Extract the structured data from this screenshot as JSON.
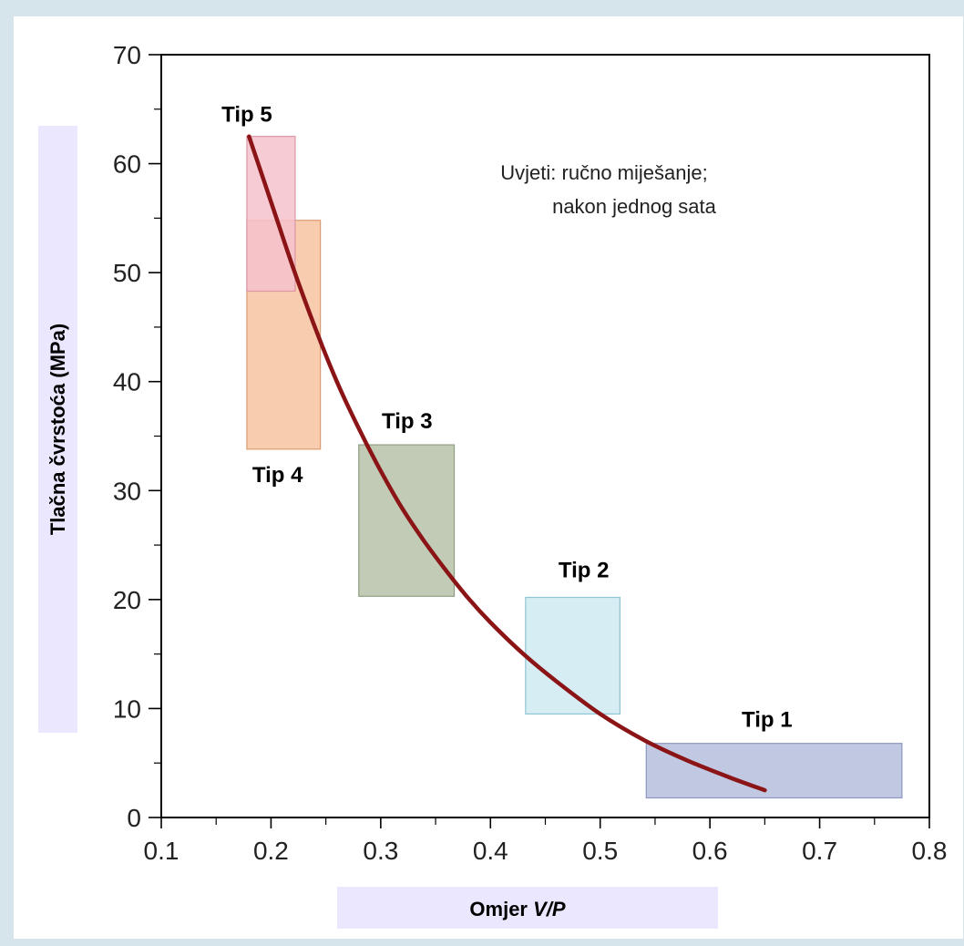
{
  "chart_data": {
    "type": "line",
    "title": "",
    "xlabel": "Omjer V/P",
    "xlabel_parts": [
      "Omjer ",
      "V/P"
    ],
    "ylabel": "Tlačna čvrstoća (MPa)",
    "xlim": [
      0.1,
      0.8
    ],
    "ylim": [
      0,
      70
    ],
    "x_ticks": [
      "0.1",
      "0.2",
      "0.3",
      "0.4",
      "0.5",
      "0.6",
      "0.7",
      "0.8"
    ],
    "y_ticks": [
      "0",
      "10",
      "20",
      "30",
      "40",
      "50",
      "60",
      "70"
    ],
    "grid": false,
    "annotation": [
      "Uvjeti: ručno miješanje;",
      "nakon jednog sata"
    ],
    "curve": {
      "color": "#8b1416",
      "x": [
        0.18,
        0.2,
        0.22,
        0.24,
        0.26,
        0.28,
        0.3,
        0.32,
        0.34,
        0.36,
        0.38,
        0.4,
        0.43,
        0.46,
        0.5,
        0.54,
        0.58,
        0.62,
        0.65
      ],
      "y": [
        62.5,
        56.5,
        50.5,
        45.0,
        40.0,
        35.7,
        31.8,
        28.3,
        25.3,
        22.6,
        20.1,
        17.9,
        15.0,
        12.5,
        9.5,
        7.1,
        5.2,
        3.6,
        2.5
      ]
    },
    "regions": [
      {
        "label": "Tip 1",
        "x": [
          0.542,
          0.775
        ],
        "y": [
          1.8,
          6.8
        ],
        "fill": "#b6bedd",
        "stroke": "#8d97c2"
      },
      {
        "label": "Tip 2",
        "x": [
          0.432,
          0.518
        ],
        "y": [
          9.5,
          20.2
        ],
        "fill": "#cfeaf1",
        "stroke": "#8fc6d4"
      },
      {
        "label": "Tip 3",
        "x": [
          0.28,
          0.367
        ],
        "y": [
          20.3,
          34.2
        ],
        "fill": "#b6c2a8",
        "stroke": "#8f9f82"
      },
      {
        "label": "Tip 4",
        "x": [
          0.178,
          0.245
        ],
        "y": [
          33.8,
          54.8
        ],
        "fill": "#f7c3a0",
        "stroke": "#dc9b72"
      },
      {
        "label": "Tip 5",
        "x": [
          0.178,
          0.222
        ],
        "y": [
          48.3,
          62.5
        ],
        "fill": "#f6c2cd",
        "stroke": "#dd95a7"
      }
    ]
  }
}
